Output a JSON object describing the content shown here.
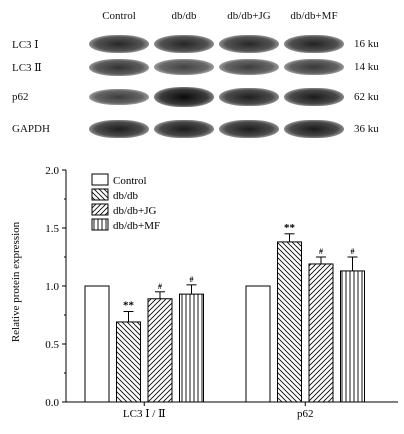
{
  "blot": {
    "lanes": [
      "Control",
      "db/db",
      "db/db+JG",
      "db/db+MF"
    ],
    "rows": [
      {
        "label": "LC3 Ⅰ",
        "size": "16 ku",
        "bands": [
          0.78,
          0.8,
          0.78,
          0.82
        ]
      },
      {
        "label": "LC3 Ⅱ",
        "size": "14 ku",
        "bands": [
          0.7,
          0.58,
          0.62,
          0.66
        ]
      },
      {
        "label": "p62",
        "size": "62 ku",
        "bands": [
          0.62,
          1.0,
          0.85,
          0.88
        ]
      },
      {
        "label": "GAPDH",
        "size": "36 ku",
        "bands": [
          0.85,
          0.87,
          0.86,
          0.88
        ]
      }
    ]
  },
  "chart_data": {
    "type": "bar",
    "ylabel": "Relative protein expression",
    "ylim": [
      0,
      2.0
    ],
    "yticks": [
      "0.0",
      "0.5",
      "1.0",
      "1.5",
      "2.0"
    ],
    "categories": [
      "LC3 Ⅰ / Ⅱ",
      "p62"
    ],
    "legend_position": "top-left",
    "series": [
      {
        "name": "Control",
        "pattern": "none",
        "values": [
          1.0,
          1.0
        ],
        "errors": [
          0,
          0
        ],
        "marks": [
          "",
          ""
        ]
      },
      {
        "name": "db/db",
        "pattern": "backslash",
        "values": [
          0.69,
          1.38
        ],
        "errors": [
          0.09,
          0.07
        ],
        "marks": [
          "**",
          "**"
        ]
      },
      {
        "name": "db/db+JG",
        "pattern": "slash",
        "values": [
          0.89,
          1.19
        ],
        "errors": [
          0.06,
          0.06
        ],
        "marks": [
          "#",
          "#"
        ]
      },
      {
        "name": "db/db+MF",
        "pattern": "vertical",
        "values": [
          0.93,
          1.13
        ],
        "errors": [
          0.08,
          0.12
        ],
        "marks": [
          "#",
          "#"
        ]
      }
    ]
  }
}
